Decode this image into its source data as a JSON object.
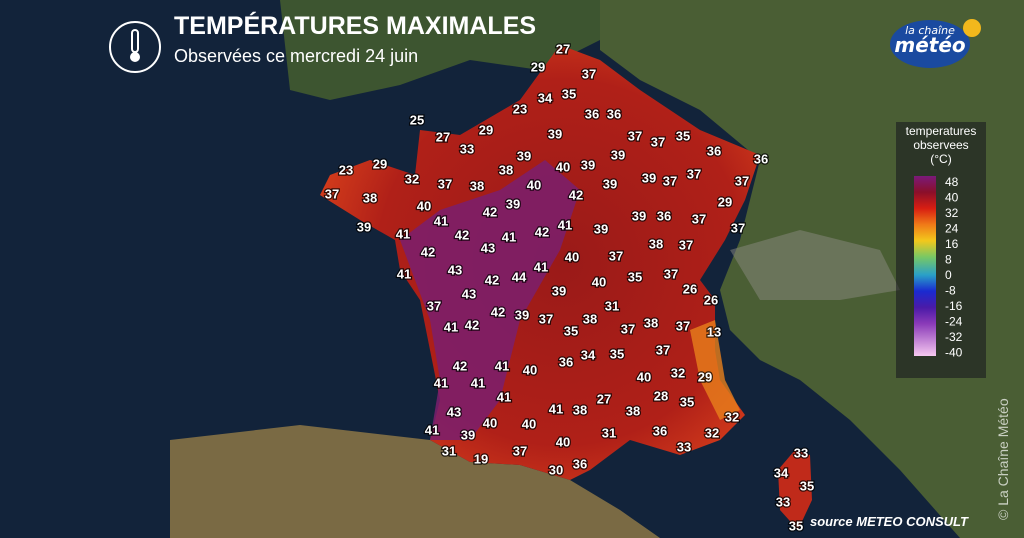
{
  "header": {
    "title": "TEMPÉRATURES MAXIMALES",
    "subtitle": "Observées ce mercredi 24 juin"
  },
  "logo": {
    "line1": "la chaîne",
    "line2": "météo"
  },
  "legend": {
    "title": [
      "temperatures",
      "observees",
      "(°C)"
    ],
    "ticks": [
      48,
      40,
      32,
      24,
      16,
      8,
      0,
      -8,
      -16,
      -24,
      -32,
      -40
    ]
  },
  "stations": [
    27,
    29,
    37,
    34,
    35,
    23,
    36,
    36,
    25,
    29,
    27,
    39,
    37,
    37,
    35,
    33,
    36,
    36,
    39,
    40,
    39,
    39,
    23,
    29,
    38,
    32,
    37,
    38,
    40,
    39,
    39,
    37,
    37,
    37,
    37,
    38,
    42,
    40,
    39,
    42,
    29,
    41,
    39,
    36,
    37,
    37,
    39,
    41,
    42,
    41,
    42,
    41,
    39,
    43,
    42,
    38,
    37,
    40,
    37,
    41,
    41,
    43,
    42,
    44,
    35,
    37,
    40,
    39,
    43,
    26,
    26,
    37,
    31,
    42,
    39,
    37,
    38,
    41,
    42,
    35,
    37,
    38,
    37,
    13,
    37,
    34,
    35,
    36,
    42,
    41,
    40,
    32,
    40,
    41,
    41,
    29,
    41,
    27,
    28,
    35,
    41,
    38,
    38,
    43,
    32,
    40,
    40,
    41,
    39,
    31,
    36,
    32,
    40,
    31,
    33,
    37,
    19,
    36,
    30,
    33,
    34,
    35,
    33,
    35
  ],
  "source": "source METEO CONSULT",
  "watermark": "© La Chaîne Météo"
}
